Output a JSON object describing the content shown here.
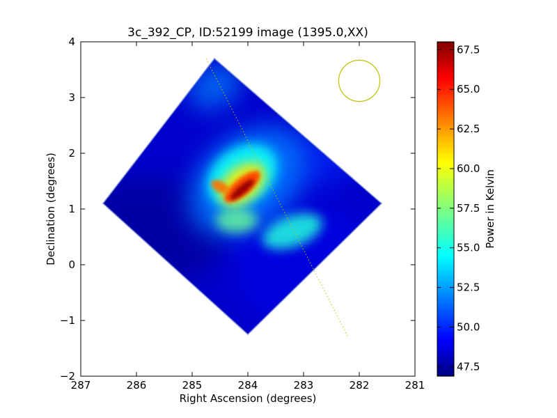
{
  "chart_data": {
    "type": "heatmap",
    "title": "3c_392_CP, ID:52199 image (1395.0,XX)",
    "xlabel": "Right Ascension (degrees)",
    "ylabel": "Declination (degrees)",
    "xlim": [
      287,
      281
    ],
    "ylim": [
      -2,
      4
    ],
    "xticks": [
      287,
      286,
      285,
      284,
      283,
      282,
      281
    ],
    "xtick_labels": [
      "287",
      "286",
      "285",
      "284",
      "283",
      "282",
      "281"
    ],
    "yticks": [
      -2,
      -1,
      0,
      1,
      2,
      3,
      4
    ],
    "ytick_labels": [
      "−2",
      "−1",
      "0",
      "1",
      "2",
      "3",
      "4"
    ],
    "grid": false,
    "colorbar": {
      "label": "Power in Kelvin",
      "colormap": "jet",
      "range": [
        46.9,
        68.0
      ],
      "ticks": [
        47.5,
        50.0,
        52.5,
        55.0,
        57.5,
        60.0,
        62.5,
        65.0,
        67.5
      ],
      "tick_labels": [
        "47.5",
        "50.0",
        "52.5",
        "55.0",
        "57.5",
        "60.0",
        "62.5",
        "65.0",
        "67.5"
      ]
    },
    "map_footprint": {
      "shape": "rotated square with clipped corners",
      "vertices_ra_dec": [
        [
          284.6,
          3.7
        ],
        [
          281.6,
          1.1
        ],
        [
          284.0,
          -1.25
        ],
        [
          286.6,
          1.1
        ]
      ],
      "background_value": 48.5
    },
    "sources": [
      {
        "ra": 284.15,
        "dec": 1.35,
        "peak_value": 68.0,
        "desc": "bright elongated source"
      }
    ],
    "overlays": {
      "beam_circle": {
        "ra": 282.0,
        "dec": 3.3,
        "radius_deg": 0.37,
        "color": "#bfbf00"
      },
      "dotted_track": {
        "from": [
          284.75,
          3.7
        ],
        "to": [
          282.2,
          -1.3
        ],
        "color": "#bfbf00"
      }
    }
  }
}
